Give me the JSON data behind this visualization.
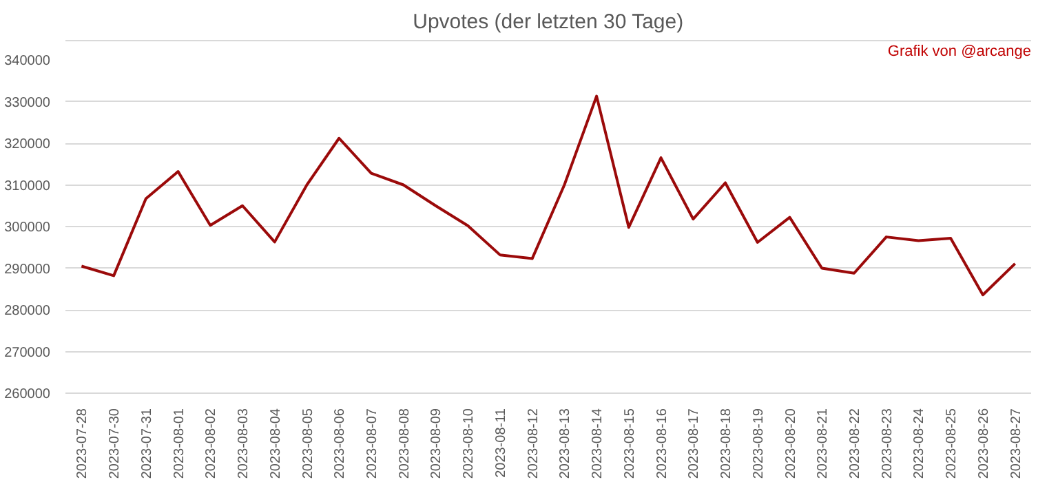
{
  "chart_data": {
    "type": "line",
    "title": "Upvotes (der letzten 30 Tage)",
    "annotations": [
      "Grafik von @arcange"
    ],
    "categories": [
      "2023-07-28",
      "2023-07-30",
      "2023-07-31",
      "2023-08-01",
      "2023-08-02",
      "2023-08-03",
      "2023-08-04",
      "2023-08-05",
      "2023-08-06",
      "2023-08-07",
      "2023-08-08",
      "2023-08-09",
      "2023-08-10",
      "2023-08-11",
      "2023-08-12",
      "2023-08-13",
      "2023-08-14",
      "2023-08-15",
      "2023-08-16",
      "2023-08-17",
      "2023-08-18",
      "2023-08-19",
      "2023-08-20",
      "2023-08-21",
      "2023-08-22",
      "2023-08-23",
      "2023-08-24",
      "2023-08-25",
      "2023-08-26",
      "2023-08-27"
    ],
    "series": [
      {
        "color": "#9b0a0a",
        "values": [
          290500,
          288200,
          306700,
          313200,
          300300,
          305000,
          296300,
          310000,
          321200,
          312800,
          310000,
          305000,
          300200,
          293200,
          292300,
          310000,
          331300,
          299800,
          316500,
          301800,
          310500,
          296200,
          302200,
          290000,
          288800,
          297500,
          296600,
          297200,
          283600,
          291100
        ]
      }
    ],
    "ylim": [
      260000,
      340000
    ],
    "yticks": [
      260000,
      270000,
      280000,
      290000,
      300000,
      310000,
      320000,
      330000,
      340000
    ],
    "grid": "y",
    "marker": "none",
    "line_style": "solid"
  }
}
